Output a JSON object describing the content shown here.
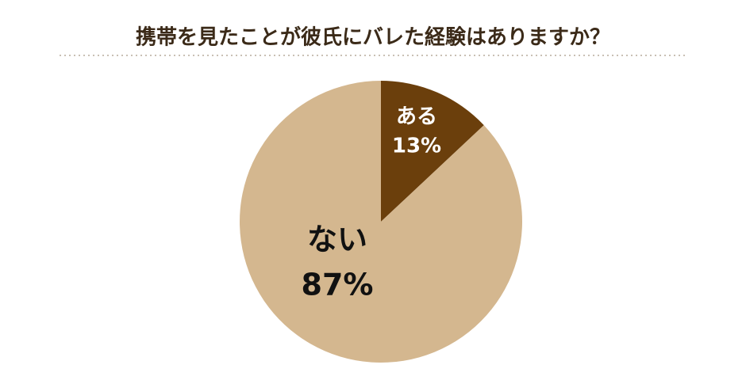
{
  "chart_data": {
    "type": "pie",
    "title": "携帯を見たことが彼氏にバレた経験はありますか？",
    "categories": [
      "ある",
      "ない"
    ],
    "values": [
      13,
      87
    ],
    "value_labels": [
      "13%",
      "87%"
    ],
    "colors": [
      "#6b3f0c",
      "#d4b78f"
    ]
  }
}
